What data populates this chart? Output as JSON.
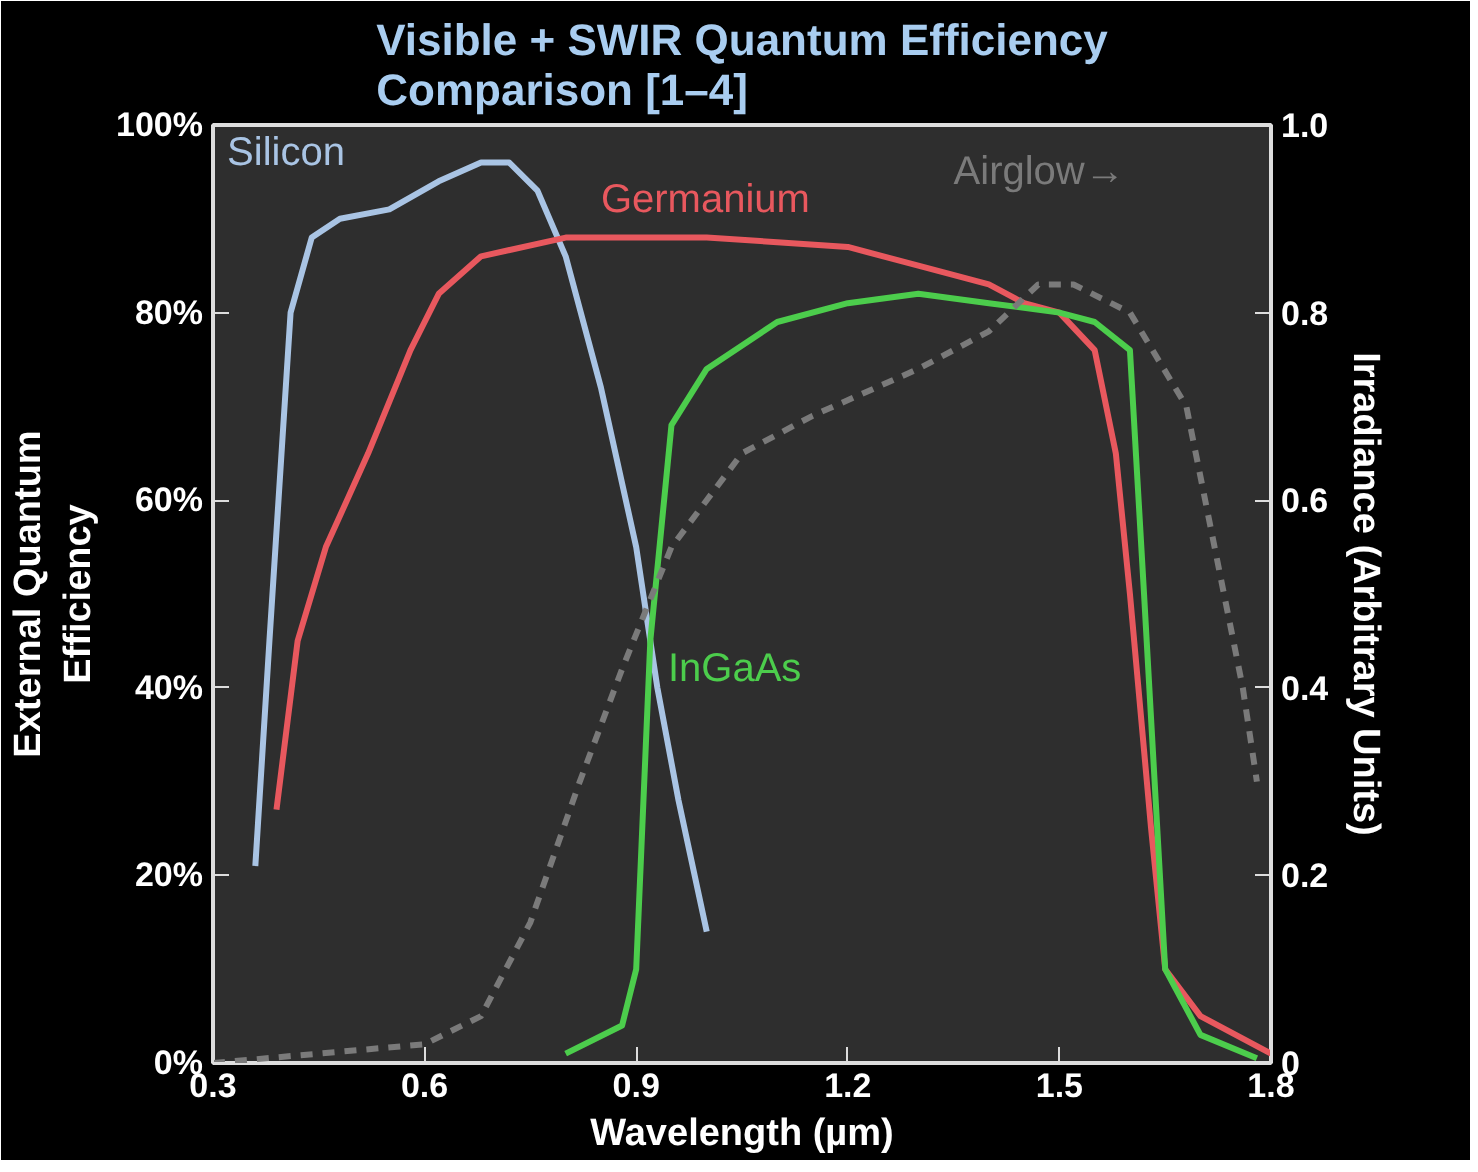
{
  "chart_data": {
    "type": "line",
    "title": "Visible + SWIR Quantum Efficiency\nComparison [1–4]",
    "xlabel": "Wavelength (µm)",
    "ylabel": "External Quantum\nEfficiency",
    "y2label": "Irradiance (Arbitrary Units)",
    "xlim": [
      0.3,
      1.8
    ],
    "xticks": [
      0.3,
      0.6,
      0.9,
      1.2,
      1.5,
      1.8
    ],
    "ylim": [
      0,
      100
    ],
    "yticks": [
      {
        "value": 0,
        "label": "0%"
      },
      {
        "value": 20,
        "label": "20%"
      },
      {
        "value": 40,
        "label": "40%"
      },
      {
        "value": 60,
        "label": "60%"
      },
      {
        "value": 80,
        "label": "80%"
      },
      {
        "value": 100,
        "label": "100%"
      }
    ],
    "y2lim": [
      0,
      1
    ],
    "y2ticks": [
      {
        "value": 0,
        "label": "0"
      },
      0.2,
      0.4,
      0.6,
      0.8,
      {
        "value": 1,
        "label": "1.0"
      }
    ],
    "grid": false,
    "legend": false,
    "marker": "none",
    "series": [
      {
        "name": "Silicon",
        "color": "#a9c4e4",
        "line_style": "solid",
        "x": [
          0.36,
          0.38,
          0.41,
          0.44,
          0.48,
          0.55,
          0.62,
          0.68,
          0.72,
          0.76,
          0.8,
          0.85,
          0.9,
          0.93,
          0.96,
          1.0
        ],
        "values": [
          21,
          45,
          80,
          88,
          90,
          91,
          94,
          96,
          96,
          93,
          86,
          72,
          55,
          40,
          28,
          14
        ]
      },
      {
        "name": "Germanium",
        "color": "#e8585e",
        "line_style": "solid",
        "x": [
          0.39,
          0.42,
          0.46,
          0.52,
          0.58,
          0.62,
          0.68,
          0.8,
          0.9,
          1.0,
          1.1,
          1.2,
          1.3,
          1.4,
          1.45,
          1.5,
          1.55,
          1.58,
          1.6,
          1.63,
          1.65,
          1.7,
          1.8
        ],
        "values": [
          27,
          45,
          55,
          65,
          76,
          82,
          86,
          88,
          88,
          88,
          87.5,
          87,
          85,
          83,
          81,
          80,
          76,
          65,
          50,
          25,
          10,
          5,
          1
        ]
      },
      {
        "name": "InGaAs",
        "color": "#4ccd4c",
        "line_style": "solid",
        "x": [
          0.8,
          0.88,
          0.9,
          0.92,
          0.95,
          1.0,
          1.1,
          1.2,
          1.3,
          1.4,
          1.5,
          1.55,
          1.6,
          1.62,
          1.65,
          1.7,
          1.78
        ],
        "values": [
          1,
          4,
          10,
          45,
          68,
          74,
          79,
          81,
          82,
          81,
          80,
          79,
          76,
          50,
          10,
          3,
          0.5
        ]
      },
      {
        "name": "Airglow→",
        "color": "#7a7a7a",
        "line_style": "dashed",
        "axis": "y2",
        "x": [
          0.3,
          0.6,
          0.68,
          0.75,
          0.82,
          0.88,
          0.95,
          1.05,
          1.15,
          1.3,
          1.4,
          1.47,
          1.52,
          1.6,
          1.68,
          1.72,
          1.76,
          1.78
        ],
        "values": [
          0,
          0.02,
          0.05,
          0.15,
          0.3,
          0.42,
          0.55,
          0.65,
          0.69,
          0.74,
          0.78,
          0.83,
          0.83,
          0.8,
          0.7,
          0.55,
          0.4,
          0.3
        ]
      }
    ]
  }
}
